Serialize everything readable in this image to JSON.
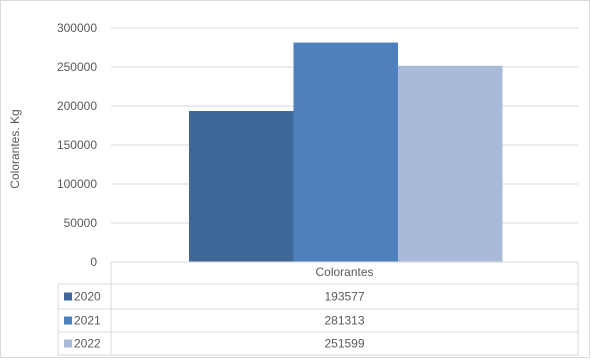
{
  "chart_data": {
    "type": "bar",
    "categories": [
      "Colorantes"
    ],
    "series": [
      {
        "name": "2020",
        "values": [
          193577
        ],
        "color": "#3f6797"
      },
      {
        "name": "2021",
        "values": [
          281313
        ],
        "color": "#4e80bd"
      },
      {
        "name": "2022",
        "values": [
          251599
        ],
        "color": "#a9b9d8"
      }
    ],
    "title": "",
    "xlabel": "",
    "ylabel": "Colorantes. Kg",
    "ylim": [
      0,
      300000
    ],
    "yticks": [
      "0",
      "50000",
      "100000",
      "150000",
      "200000",
      "250000",
      "300000"
    ],
    "grid": true,
    "legend": "data-table",
    "data_table": {
      "header": "Colorantes",
      "rows": [
        {
          "label": "2020",
          "value": "193577"
        },
        {
          "label": "2021",
          "value": "281313"
        },
        {
          "label": "2022",
          "value": "251599"
        }
      ]
    }
  }
}
